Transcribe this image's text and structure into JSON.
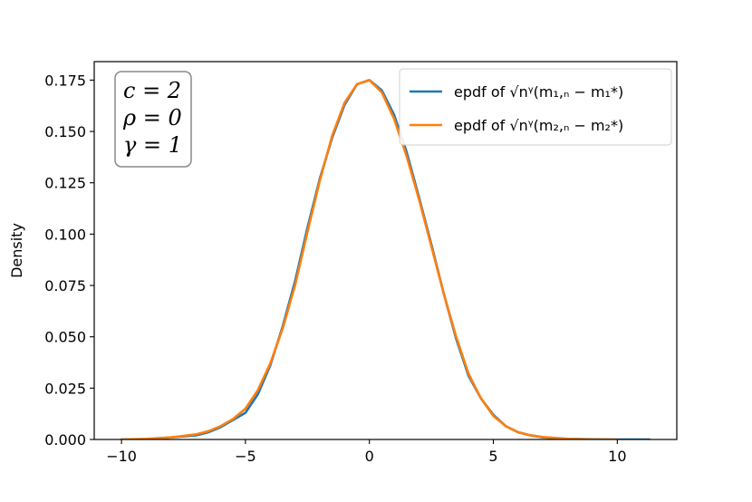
{
  "chart_data": {
    "type": "line",
    "title": "",
    "xlabel": "",
    "ylabel": "Density",
    "xlim": [
      -11.1,
      12.4
    ],
    "ylim": [
      0,
      0.184
    ],
    "xticks": [
      {
        "value": -10,
        "label": "−10"
      },
      {
        "value": -5,
        "label": "−5"
      },
      {
        "value": 0,
        "label": "0"
      },
      {
        "value": 5,
        "label": "5"
      },
      {
        "value": 10,
        "label": "10"
      }
    ],
    "yticks": [
      {
        "value": 0.0,
        "label": "0.000"
      },
      {
        "value": 0.025,
        "label": "0.025"
      },
      {
        "value": 0.05,
        "label": "0.050"
      },
      {
        "value": 0.075,
        "label": "0.075"
      },
      {
        "value": 0.1,
        "label": "0.100"
      },
      {
        "value": 0.125,
        "label": "0.125"
      },
      {
        "value": 0.15,
        "label": "0.150"
      },
      {
        "value": 0.175,
        "label": "0.175"
      }
    ],
    "grid": false,
    "legend_position": "top-right",
    "annotation": {
      "lines": [
        "c = 2",
        "ρ = 0",
        "γ = 1"
      ],
      "position": "top-left"
    },
    "series": [
      {
        "name": "epdf of √nᵞ(m₁,ₙ − m₁*)",
        "color": "#1f77b4",
        "x": [
          -10.0,
          -9.0,
          -8.0,
          -7.0,
          -6.5,
          -6.0,
          -5.5,
          -5.0,
          -4.5,
          -4.0,
          -3.5,
          -3.0,
          -2.5,
          -2.0,
          -1.5,
          -1.0,
          -0.5,
          0.0,
          0.5,
          1.0,
          1.5,
          2.0,
          2.5,
          3.0,
          3.5,
          4.0,
          4.5,
          5.0,
          5.5,
          6.0,
          6.5,
          7.0,
          8.0,
          9.0,
          10.0,
          11.3
        ],
        "y": [
          0.0,
          0.0,
          0.001,
          0.002,
          0.0035,
          0.006,
          0.0095,
          0.013,
          0.022,
          0.036,
          0.055,
          0.077,
          0.103,
          0.127,
          0.147,
          0.163,
          0.173,
          0.175,
          0.17,
          0.158,
          0.14,
          0.118,
          0.095,
          0.071,
          0.049,
          0.031,
          0.02,
          0.012,
          0.0065,
          0.0035,
          0.002,
          0.001,
          0.0003,
          0.0001,
          0.0,
          0.0
        ]
      },
      {
        "name": "epdf of √nᵞ(m₂,ₙ − m₂*)",
        "color": "#ff7f0e",
        "x": [
          -10.0,
          -9.0,
          -8.0,
          -7.0,
          -6.5,
          -6.0,
          -5.5,
          -5.0,
          -4.5,
          -4.0,
          -3.5,
          -3.0,
          -2.5,
          -2.0,
          -1.5,
          -1.0,
          -0.5,
          0.0,
          0.5,
          1.0,
          1.5,
          2.0,
          2.5,
          3.0,
          3.5,
          4.0,
          4.5,
          5.0,
          5.5,
          6.0,
          6.5,
          7.0,
          8.0,
          9.0,
          10.0
        ],
        "y": [
          0.0,
          0.0003,
          0.001,
          0.0025,
          0.004,
          0.0065,
          0.01,
          0.015,
          0.024,
          0.037,
          0.054,
          0.075,
          0.101,
          0.126,
          0.148,
          0.164,
          0.173,
          0.175,
          0.169,
          0.156,
          0.138,
          0.117,
          0.094,
          0.071,
          0.05,
          0.032,
          0.02,
          0.0115,
          0.0065,
          0.0035,
          0.002,
          0.0012,
          0.0003,
          0.0,
          0.0
        ]
      }
    ]
  }
}
